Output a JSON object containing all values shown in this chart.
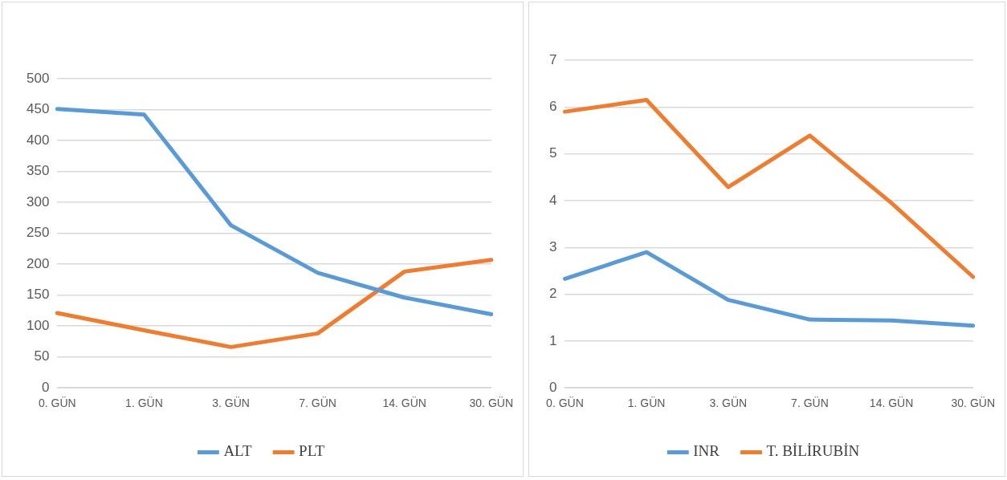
{
  "chart_data": [
    {
      "type": "line",
      "categories": [
        "0. GÜN",
        "1. GÜN",
        "3. GÜN",
        "7. GÜN",
        "14. GÜN",
        "30. GÜN"
      ],
      "ylim": [
        0,
        500
      ],
      "yticks": [
        0,
        50,
        100,
        150,
        200,
        250,
        300,
        350,
        400,
        450,
        500
      ],
      "grid": "y",
      "legend": "bottom",
      "marker": "none",
      "line_style": "solid",
      "series": [
        {
          "name": "ALT",
          "color": "#5b9bd5",
          "values": [
            451,
            442,
            263,
            186,
            146,
            119
          ]
        },
        {
          "name": "PLT",
          "color": "#ed7d31",
          "values": [
            121,
            93,
            66,
            88,
            188,
            207
          ]
        }
      ]
    },
    {
      "type": "line",
      "categories": [
        "0. GÜN",
        "1. GÜN",
        "3. GÜN",
        "7. GÜN",
        "14. GÜN",
        "30. GÜN"
      ],
      "ylim": [
        0,
        7
      ],
      "yticks": [
        0,
        1,
        2,
        3,
        4,
        5,
        6,
        7
      ],
      "grid": "y",
      "legend": "bottom",
      "marker": "none",
      "line_style": "solid",
      "series": [
        {
          "name": "INR",
          "color": "#5b9bd5",
          "values": [
            2.33,
            2.9,
            1.88,
            1.46,
            1.44,
            1.33
          ]
        },
        {
          "name": "T. BİLİRUBİN",
          "color": "#ed7d31",
          "values": [
            5.9,
            6.15,
            4.29,
            5.39,
            3.95,
            2.37
          ]
        }
      ]
    }
  ]
}
